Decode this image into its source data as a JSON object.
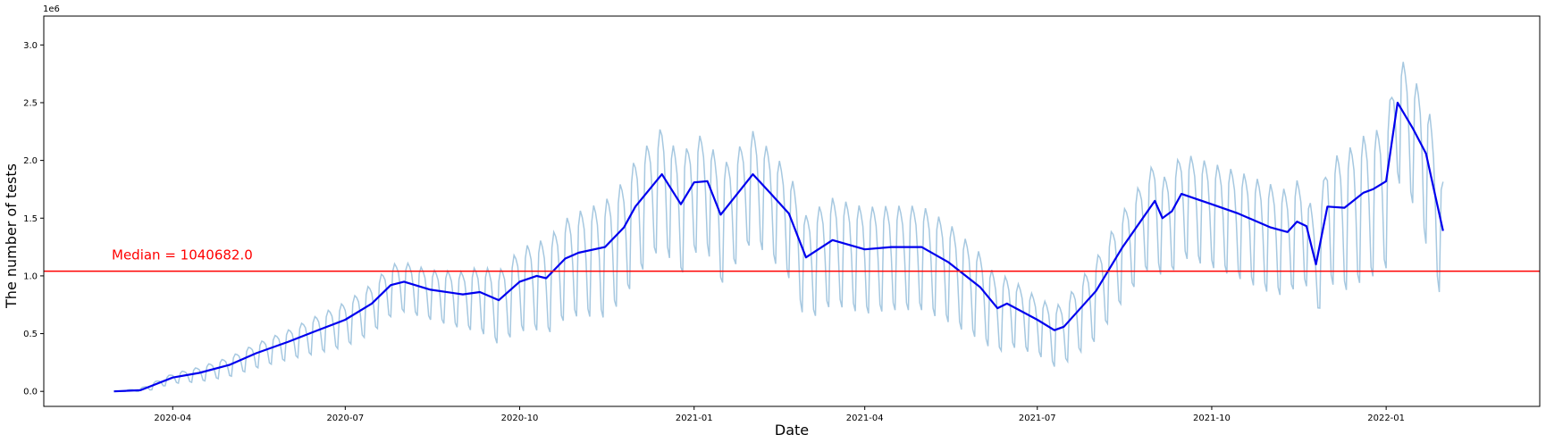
{
  "chart_data": {
    "type": "line",
    "xlabel": "Date",
    "ylabel": "The number of tests",
    "y_offset_text": "1e6",
    "x_ticks": [
      "2020-04",
      "2020-07",
      "2020-10",
      "2021-01",
      "2021-04",
      "2021-07",
      "2021-10",
      "2022-01"
    ],
    "y_ticks": [
      "0.0",
      "0.5",
      "1.0",
      "1.5",
      "2.0",
      "2.5",
      "3.0"
    ],
    "xlim": [
      "2020-01-24",
      "2022-03-23"
    ],
    "ylim": [
      -130000,
      3250000
    ],
    "grid": false,
    "median": {
      "label": "Median = 1040682.0",
      "value": 1040682.0,
      "color": "#ff0000"
    },
    "series": [
      {
        "role": "daily",
        "color": "#a6c8e0",
        "start": "2020-03-01",
        "end": "2022-01-31",
        "x": [
          "2020-03-01",
          "2020-03-15",
          "2020-04-01",
          "2020-04-15",
          "2020-05-01",
          "2020-05-15",
          "2020-06-01",
          "2020-06-15",
          "2020-07-01",
          "2020-07-15",
          "2020-07-25",
          "2020-08-01",
          "2020-08-15",
          "2020-09-01",
          "2020-09-15",
          "2020-10-01",
          "2020-10-15",
          "2020-11-01",
          "2020-11-15",
          "2020-11-25",
          "2020-12-01",
          "2020-12-15",
          "2021-01-01",
          "2021-01-15",
          "2021-02-01",
          "2021-02-15",
          "2021-03-01",
          "2021-03-15",
          "2021-04-01",
          "2021-04-15",
          "2021-05-01",
          "2021-05-15",
          "2021-06-01",
          "2021-06-15",
          "2021-07-01",
          "2021-07-15",
          "2021-08-01",
          "2021-08-15",
          "2021-09-01",
          "2021-09-15",
          "2021-10-01",
          "2021-10-15",
          "2021-11-01",
          "2021-11-15",
          "2021-11-25",
          "2021-12-01",
          "2021-12-15",
          "2022-01-01",
          "2022-01-07",
          "2022-01-15",
          "2022-01-22",
          "2022-01-31"
        ],
        "amplitude": [
          0,
          20000,
          40000,
          60000,
          80000,
          100000,
          120000,
          150000,
          180000,
          200000,
          210000,
          200000,
          200000,
          230000,
          280000,
          330000,
          380000,
          420000,
          470000,
          480000,
          480000,
          480000,
          470000,
          470000,
          440000,
          430000,
          430000,
          430000,
          430000,
          420000,
          420000,
          400000,
          350000,
          280000,
          230000,
          250000,
          330000,
          360000,
          400000,
          420000,
          420000,
          430000,
          440000,
          420000,
          380000,
          500000,
          580000,
          580000,
          520000,
          500000,
          600000,
          500000
        ]
      },
      {
        "role": "rolling average",
        "color": "#0000ee",
        "x": [
          "2020-03-01",
          "2020-03-15",
          "2020-04-01",
          "2020-04-15",
          "2020-05-01",
          "2020-05-15",
          "2020-06-01",
          "2020-06-15",
          "2020-07-01",
          "2020-07-15",
          "2020-07-25",
          "2020-08-01",
          "2020-08-15",
          "2020-09-01",
          "2020-09-10",
          "2020-09-20",
          "2020-10-01",
          "2020-10-10",
          "2020-10-15",
          "2020-10-25",
          "2020-11-01",
          "2020-11-15",
          "2020-11-25",
          "2020-12-01",
          "2020-12-15",
          "2020-12-25",
          "2021-01-01",
          "2021-01-08",
          "2021-01-15",
          "2021-02-01",
          "2021-02-10",
          "2021-02-20",
          "2021-03-01",
          "2021-03-15",
          "2021-04-01",
          "2021-04-15",
          "2021-05-01",
          "2021-05-15",
          "2021-06-01",
          "2021-06-10",
          "2021-06-15",
          "2021-07-01",
          "2021-07-10",
          "2021-07-15",
          "2021-08-01",
          "2021-08-15",
          "2021-09-01",
          "2021-09-05",
          "2021-09-10",
          "2021-09-15",
          "2021-10-01",
          "2021-10-15",
          "2021-11-01",
          "2021-11-10",
          "2021-11-15",
          "2021-11-20",
          "2021-11-25",
          "2021-12-01",
          "2021-12-10",
          "2021-12-20",
          "2021-12-25",
          "2022-01-01",
          "2022-01-07",
          "2022-01-15",
          "2022-01-22",
          "2022-01-31"
        ],
        "y": [
          0,
          10000,
          120000,
          160000,
          230000,
          330000,
          430000,
          520000,
          620000,
          760000,
          920000,
          950000,
          880000,
          840000,
          860000,
          790000,
          950000,
          1000000,
          980000,
          1150000,
          1200000,
          1250000,
          1420000,
          1600000,
          1880000,
          1620000,
          1810000,
          1820000,
          1530000,
          1880000,
          1720000,
          1540000,
          1160000,
          1310000,
          1230000,
          1250000,
          1250000,
          1120000,
          900000,
          720000,
          760000,
          620000,
          530000,
          560000,
          870000,
          1250000,
          1650000,
          1500000,
          1560000,
          1710000,
          1620000,
          1540000,
          1420000,
          1380000,
          1470000,
          1430000,
          1100000,
          1600000,
          1590000,
          1720000,
          1750000,
          1820000,
          2500000,
          2280000,
          2060000,
          1390000
        ]
      }
    ]
  }
}
